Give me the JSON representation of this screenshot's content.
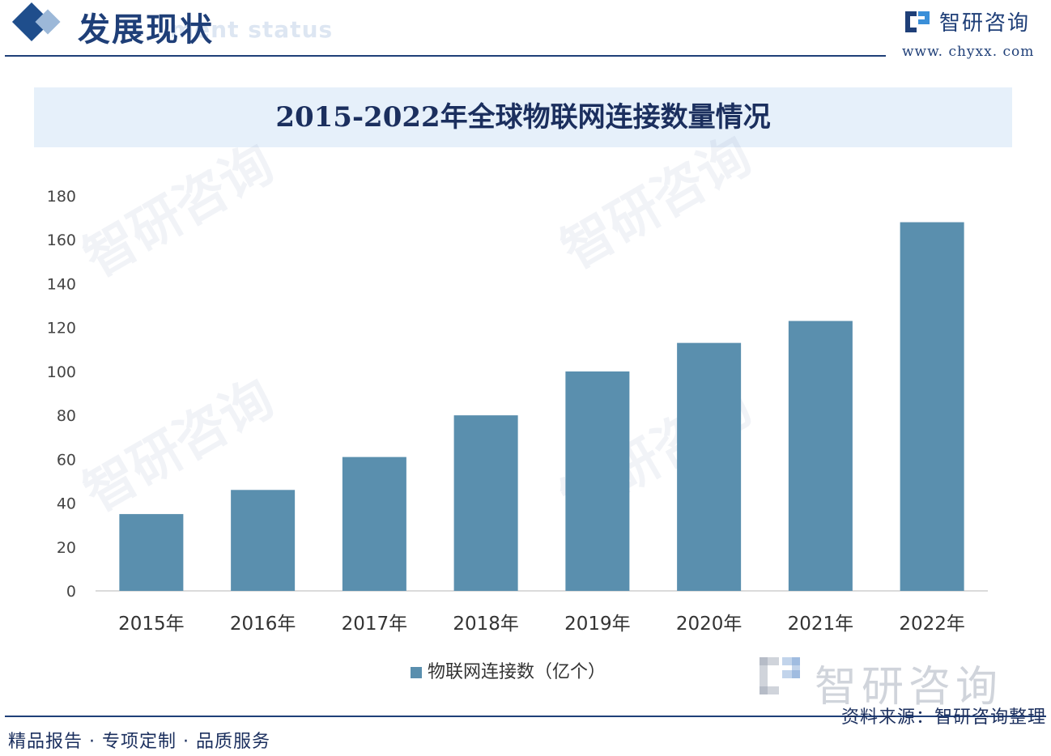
{
  "header": {
    "title": "发展现状",
    "subtitle": "ment status",
    "brand_name": "智研咨询",
    "brand_url": "www. chyxx. com"
  },
  "watermark": {
    "text": "智研咨询"
  },
  "footer": {
    "left": "精品报告 · 专项定制 · 品质服务",
    "source": "资料来源：智研咨询整理"
  },
  "colors": {
    "bar": "#5a8fae",
    "title_band": "#e6f0fa",
    "brand": "#1f3f78"
  },
  "chart_data": {
    "type": "bar",
    "title": "2015-2022年全球物联网连接数量情况",
    "categories": [
      "2015年",
      "2016年",
      "2017年",
      "2018年",
      "2019年",
      "2020年",
      "2021年",
      "2022年"
    ],
    "series": [
      {
        "name": "物联网连接数（亿个）",
        "values": [
          35,
          46,
          61,
          80,
          100,
          113,
          123,
          168
        ]
      }
    ],
    "ylim": [
      0,
      180
    ],
    "yticks": [
      0,
      20,
      40,
      60,
      80,
      100,
      120,
      140,
      160,
      180
    ],
    "grid": false,
    "legend_position": "bottom-center",
    "xlabel": "",
    "ylabel": ""
  }
}
